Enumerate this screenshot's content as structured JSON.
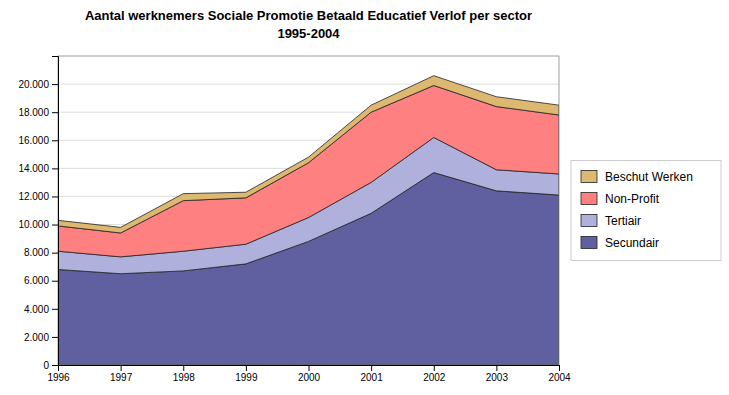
{
  "chart_data": {
    "type": "area",
    "title": "Aantal werknemers Sociale Promotie Betaald Educatief Verlof per sector",
    "subtitle": "1995-2004",
    "stacked": true,
    "x": [
      1996,
      1997,
      1998,
      1999,
      2000,
      2001,
      2002,
      2003,
      2004
    ],
    "xlim": [
      1996,
      2004
    ],
    "xticks": [
      1996,
      1997,
      1998,
      1999,
      2000,
      2001,
      2002,
      2003,
      2004
    ],
    "ylim": [
      0,
      22000
    ],
    "yticks": [
      0,
      {
        "value": 2000,
        "label": "2.000"
      },
      {
        "value": 4000,
        "label": "4.000"
      },
      {
        "value": 6000,
        "label": "6.000"
      },
      {
        "value": 8000,
        "label": "8.000"
      },
      {
        "value": 10000,
        "label": "10.000"
      },
      {
        "value": 12000,
        "label": "12.000"
      },
      {
        "value": 14000,
        "label": "14.000"
      },
      {
        "value": 16000,
        "label": "16.000"
      },
      {
        "value": 18000,
        "label": "18.000"
      },
      {
        "value": 20000,
        "label": "20.000"
      }
    ],
    "grid": true,
    "legend": "right",
    "series": [
      {
        "name": "Secundair",
        "color": "#6060a0",
        "values": [
          6800,
          6500,
          6700,
          7200,
          8800,
          10800,
          13700,
          12400,
          12100
        ]
      },
      {
        "name": "Tertiair",
        "color": "#b0b0dd",
        "values": [
          1300,
          1200,
          1400,
          1400,
          1700,
          2200,
          2500,
          1500,
          1500
        ]
      },
      {
        "name": "Non-Profit",
        "color": "#ff8080",
        "values": [
          1800,
          1700,
          3600,
          3300,
          3900,
          5000,
          3700,
          4500,
          4200
        ]
      },
      {
        "name": "Beschut Werken",
        "color": "#ddb870",
        "values": [
          400,
          400,
          500,
          400,
          400,
          500,
          700,
          700,
          700
        ]
      }
    ]
  }
}
